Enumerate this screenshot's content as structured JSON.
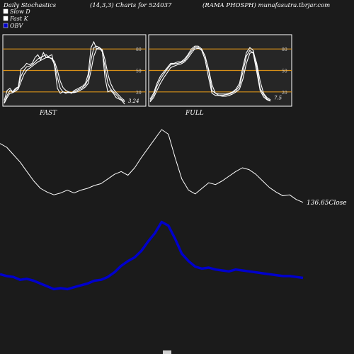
{
  "header": {
    "title_left": "Daily Stochastics",
    "title_params": "(14,3,3) Charts for 524037",
    "title_right": "(RAMA PHOSPH) munafasutra.tbrjar.com"
  },
  "legend": [
    {
      "label": "Slow  D",
      "color": "#ffffff"
    },
    {
      "label": "Fast K",
      "color": "#ffffff"
    },
    {
      "label": "OBV",
      "color": "#0000cc"
    }
  ],
  "colors": {
    "background": "#1b1b1b",
    "panel": "#262626",
    "level_line": "#d89018",
    "price": "#ffffff",
    "obv": "#0000cc"
  },
  "chart_data": [
    {
      "type": "line",
      "panel_label": "FAST",
      "last_value_label": "3.24",
      "levels": [
        20,
        50,
        80
      ],
      "level_labels": [
        "80",
        "50",
        "20"
      ],
      "ylim": [
        0,
        100
      ],
      "series": [
        {
          "values": [
            8,
            22,
            25,
            20,
            25,
            27,
            52,
            55,
            60,
            58,
            60,
            68,
            72,
            65,
            75,
            68,
            70,
            72,
            55,
            25,
            18,
            20,
            18,
            20,
            18,
            22,
            24,
            26,
            28,
            32,
            45,
            82,
            90,
            80,
            80,
            78,
            40,
            20,
            22,
            18,
            12,
            10,
            8,
            3
          ]
        },
        {
          "values": [
            5,
            15,
            22,
            20,
            23,
            26,
            42,
            50,
            55,
            56,
            58,
            62,
            66,
            68,
            70,
            72,
            68,
            66,
            58,
            40,
            25,
            20,
            19,
            19,
            19,
            20,
            22,
            24,
            26,
            30,
            38,
            65,
            82,
            84,
            82,
            76,
            55,
            32,
            24,
            20,
            16,
            12,
            9,
            6
          ]
        },
        {
          "values": [
            4,
            12,
            18,
            19,
            21,
            24,
            34,
            44,
            50,
            53,
            56,
            59,
            62,
            64,
            66,
            68,
            68,
            67,
            62,
            50,
            35,
            26,
            22,
            20,
            19,
            19,
            20,
            22,
            24,
            27,
            32,
            50,
            70,
            80,
            82,
            79,
            65,
            45,
            32,
            24,
            19,
            15,
            11,
            8
          ]
        }
      ]
    },
    {
      "type": "line",
      "panel_label": "FULL",
      "last_value_label": "7.5",
      "levels": [
        20,
        50,
        80
      ],
      "level_labels": [
        "80",
        "50",
        "20"
      ],
      "ylim": [
        0,
        100
      ],
      "series": [
        {
          "values": [
            10,
            18,
            32,
            42,
            48,
            54,
            60,
            60,
            62,
            62,
            66,
            72,
            80,
            84,
            84,
            80,
            70,
            50,
            22,
            18,
            17,
            17,
            17,
            18,
            20,
            24,
            32,
            55,
            75,
            82,
            78,
            55,
            25,
            16,
            10,
            7.5
          ]
        },
        {
          "values": [
            8,
            15,
            28,
            38,
            45,
            52,
            58,
            59,
            60,
            61,
            64,
            70,
            77,
            82,
            82,
            78,
            65,
            40,
            18,
            15,
            15,
            15,
            16,
            17,
            19,
            22,
            28,
            48,
            70,
            78,
            74,
            48,
            22,
            13,
            9,
            7
          ]
        },
        {
          "values": [
            6,
            12,
            22,
            32,
            40,
            47,
            54,
            56,
            58,
            59,
            62,
            67,
            74,
            80,
            81,
            79,
            70,
            52,
            30,
            18,
            15,
            14,
            14,
            15,
            17,
            20,
            24,
            38,
            60,
            74,
            76,
            60,
            35,
            18,
            12,
            9
          ]
        }
      ]
    },
    {
      "type": "line",
      "close_label": "136.65Close",
      "series": [
        {
          "name": "OBV",
          "values": [
            60,
            58,
            57,
            54,
            55,
            53,
            50,
            47,
            44,
            45,
            44,
            46,
            48,
            50,
            53,
            54,
            57,
            62,
            69,
            74,
            78,
            85,
            95,
            104,
            116,
            112,
            98,
            82,
            74,
            68,
            66,
            67,
            65,
            64,
            63,
            65,
            64,
            63,
            62,
            61,
            60,
            59,
            58,
            58,
            57,
            56
          ]
        },
        {
          "name": "Price",
          "values": [
            200,
            196,
            188,
            180,
            170,
            160,
            152,
            148,
            145,
            147,
            150,
            147,
            150,
            152,
            155,
            157,
            162,
            167,
            170,
            166,
            174,
            185,
            195,
            205,
            215,
            210,
            185,
            162,
            150,
            146,
            152,
            158,
            156,
            160,
            165,
            170,
            174,
            172,
            167,
            160,
            153,
            148,
            144,
            145,
            140,
            137
          ]
        }
      ]
    }
  ]
}
